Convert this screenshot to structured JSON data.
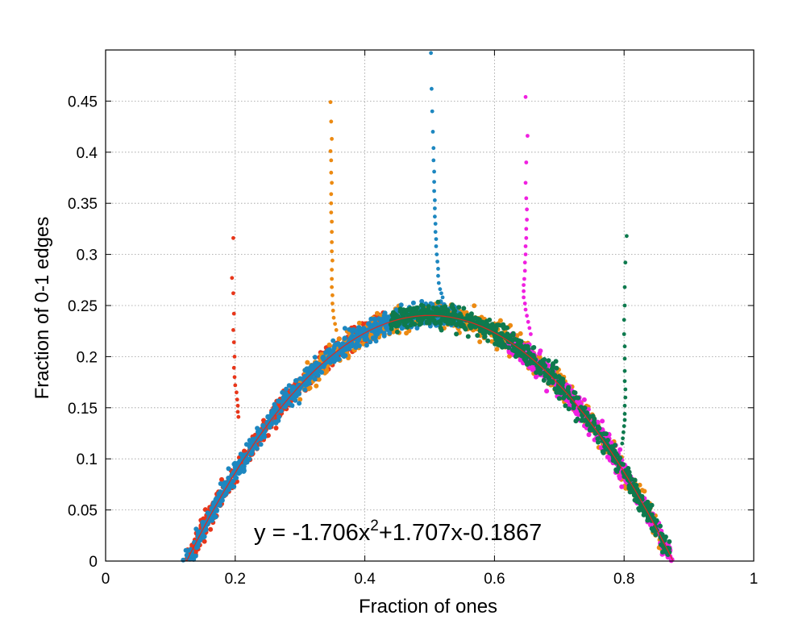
{
  "chart_data": {
    "type": "scatter",
    "title": "",
    "xlabel": "Fraction of ones",
    "ylabel": "Fraction of 0-1 edges",
    "xlim": [
      0,
      1
    ],
    "ylim": [
      0,
      0.5
    ],
    "x_ticks": [
      "0",
      "0.2",
      "0.4",
      "0.6",
      "0.8",
      "1"
    ],
    "y_ticks": [
      "0",
      "0.05",
      "0.1",
      "0.15",
      "0.2",
      "0.25",
      "0.3",
      "0.35",
      "0.4",
      "0.45"
    ],
    "grid": true,
    "legend": "none",
    "fit": {
      "equation_prefix": "y = -1.706x",
      "equation_exponent": "2",
      "equation_suffix": "+1.707x-0.1867",
      "coefficients": {
        "a": -1.706,
        "b": 1.707,
        "c": -0.1867
      },
      "x_range": [
        0.125,
        0.875
      ],
      "color": "#e0291e"
    },
    "series": [
      {
        "color": "#e8361a",
        "band_x": [
          0.125,
          0.43
        ],
        "spike_x": 0.197,
        "spike_points": [
          [
            0.197,
            0.316
          ],
          [
            0.195,
            0.277
          ],
          [
            0.197,
            0.262
          ],
          [
            0.198,
            0.242
          ],
          [
            0.197,
            0.226
          ],
          [
            0.198,
            0.214
          ],
          [
            0.199,
            0.2
          ],
          [
            0.198,
            0.189
          ],
          [
            0.199,
            0.18
          ],
          [
            0.2,
            0.172
          ],
          [
            0.202,
            0.165
          ],
          [
            0.203,
            0.158
          ],
          [
            0.204,
            0.152
          ],
          [
            0.204,
            0.146
          ],
          [
            0.205,
            0.141
          ]
        ]
      },
      {
        "color": "#ec8a12",
        "band_x": [
          0.3,
          0.86
        ],
        "spike_x": 0.349,
        "spike_points": [
          [
            0.347,
            0.449
          ],
          [
            0.348,
            0.43
          ],
          [
            0.349,
            0.413
          ],
          [
            0.347,
            0.401
          ],
          [
            0.348,
            0.392
          ],
          [
            0.348,
            0.38
          ],
          [
            0.349,
            0.37
          ],
          [
            0.348,
            0.359
          ],
          [
            0.348,
            0.35
          ],
          [
            0.348,
            0.341
          ],
          [
            0.349,
            0.332
          ],
          [
            0.349,
            0.322
          ],
          [
            0.349,
            0.312
          ],
          [
            0.349,
            0.303
          ],
          [
            0.35,
            0.294
          ],
          [
            0.349,
            0.285
          ],
          [
            0.349,
            0.276
          ],
          [
            0.349,
            0.268
          ],
          [
            0.35,
            0.26
          ],
          [
            0.35,
            0.252
          ],
          [
            0.351,
            0.245
          ],
          [
            0.352,
            0.238
          ],
          [
            0.354,
            0.232
          ],
          [
            0.356,
            0.226
          ]
        ]
      },
      {
        "color": "#1d87c0",
        "band_x": [
          0.115,
          0.55
        ],
        "spike_x": 0.51,
        "spike_points": [
          [
            0.502,
            0.497
          ],
          [
            0.503,
            0.462
          ],
          [
            0.504,
            0.44
          ],
          [
            0.505,
            0.42
          ],
          [
            0.506,
            0.404
          ],
          [
            0.506,
            0.392
          ],
          [
            0.507,
            0.381
          ],
          [
            0.507,
            0.371
          ],
          [
            0.507,
            0.362
          ],
          [
            0.508,
            0.353
          ],
          [
            0.508,
            0.345
          ],
          [
            0.508,
            0.337
          ],
          [
            0.509,
            0.33
          ],
          [
            0.509,
            0.322
          ],
          [
            0.51,
            0.315
          ],
          [
            0.51,
            0.308
          ],
          [
            0.511,
            0.3
          ],
          [
            0.512,
            0.293
          ],
          [
            0.513,
            0.286
          ],
          [
            0.513,
            0.279
          ],
          [
            0.514,
            0.272
          ],
          [
            0.516,
            0.266
          ],
          [
            0.518,
            0.262
          ],
          [
            0.52,
            0.258
          ]
        ]
      },
      {
        "color": "#f020e0",
        "band_x": [
          0.62,
          0.875
        ],
        "spike_x": 0.651,
        "spike_points": [
          [
            0.648,
            0.454
          ],
          [
            0.651,
            0.416
          ],
          [
            0.649,
            0.39
          ],
          [
            0.648,
            0.37
          ],
          [
            0.649,
            0.355
          ],
          [
            0.65,
            0.344
          ],
          [
            0.65,
            0.334
          ],
          [
            0.649,
            0.325
          ],
          [
            0.649,
            0.316
          ],
          [
            0.648,
            0.308
          ],
          [
            0.648,
            0.3
          ],
          [
            0.647,
            0.292
          ],
          [
            0.647,
            0.284
          ],
          [
            0.646,
            0.276
          ],
          [
            0.645,
            0.27
          ],
          [
            0.645,
            0.264
          ],
          [
            0.645,
            0.258
          ],
          [
            0.647,
            0.252
          ],
          [
            0.648,
            0.246
          ],
          [
            0.65,
            0.24
          ],
          [
            0.652,
            0.234
          ],
          [
            0.654,
            0.228
          ],
          [
            0.656,
            0.222
          ]
        ]
      },
      {
        "color": "#0e7a4e",
        "band_x": [
          0.44,
          0.87
        ],
        "spike_x": 0.803,
        "spike_points": [
          [
            0.804,
            0.318
          ],
          [
            0.802,
            0.292
          ],
          [
            0.801,
            0.268
          ],
          [
            0.801,
            0.25
          ],
          [
            0.8,
            0.236
          ],
          [
            0.8,
            0.222
          ],
          [
            0.801,
            0.21
          ],
          [
            0.801,
            0.198
          ],
          [
            0.801,
            0.186
          ],
          [
            0.801,
            0.176
          ],
          [
            0.802,
            0.168
          ],
          [
            0.802,
            0.16
          ],
          [
            0.801,
            0.152
          ],
          [
            0.801,
            0.144
          ],
          [
            0.801,
            0.138
          ],
          [
            0.8,
            0.132
          ],
          [
            0.799,
            0.126
          ],
          [
            0.798,
            0.12
          ],
          [
            0.797,
            0.115
          ]
        ]
      }
    ]
  }
}
